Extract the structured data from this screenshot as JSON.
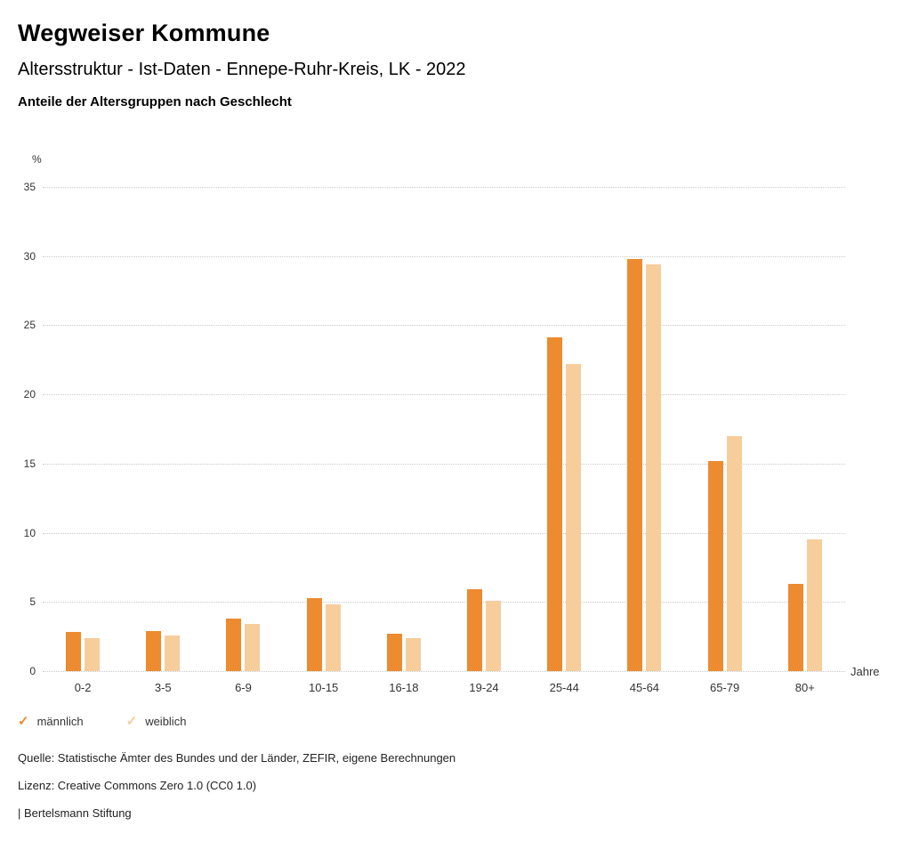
{
  "header": {
    "title": "Wegweiser Kommune",
    "subtitle": "Altersstruktur - Ist-Daten - Ennepe-Ruhr-Kreis, LK - 2022",
    "chart_heading": "Anteile der Altersgruppen nach Geschlecht"
  },
  "chart_data": {
    "type": "bar",
    "title": "Anteile der Altersgruppen nach Geschlecht",
    "unit_label": "%",
    "x_axis_label": "Jahre",
    "categories": [
      "0-2",
      "3-5",
      "6-9",
      "10-15",
      "16-18",
      "19-24",
      "25-44",
      "45-64",
      "65-79",
      "80+"
    ],
    "series": [
      {
        "name": "männlich",
        "color": "#EC8B2F",
        "values": [
          2.8,
          2.9,
          3.8,
          5.3,
          2.7,
          5.9,
          24.1,
          29.8,
          15.2,
          6.3
        ]
      },
      {
        "name": "weiblich",
        "color": "#F7CD9C",
        "values": [
          2.4,
          2.6,
          3.4,
          4.8,
          2.4,
          5.1,
          22.2,
          29.4,
          17.0,
          9.5
        ]
      }
    ],
    "ylim": [
      0,
      35
    ],
    "yticks": [
      0,
      5,
      10,
      15,
      20,
      25,
      30,
      35
    ],
    "grid": true,
    "legend_position": "bottom"
  },
  "footer": {
    "source": "Quelle: Statistische Ämter des Bundes und der Länder, ZEFIR, eigene Berechnungen",
    "license": "Lizenz: Creative Commons Zero 1.0 (CC0 1.0)",
    "attribution": "| Bertelsmann Stiftung"
  }
}
